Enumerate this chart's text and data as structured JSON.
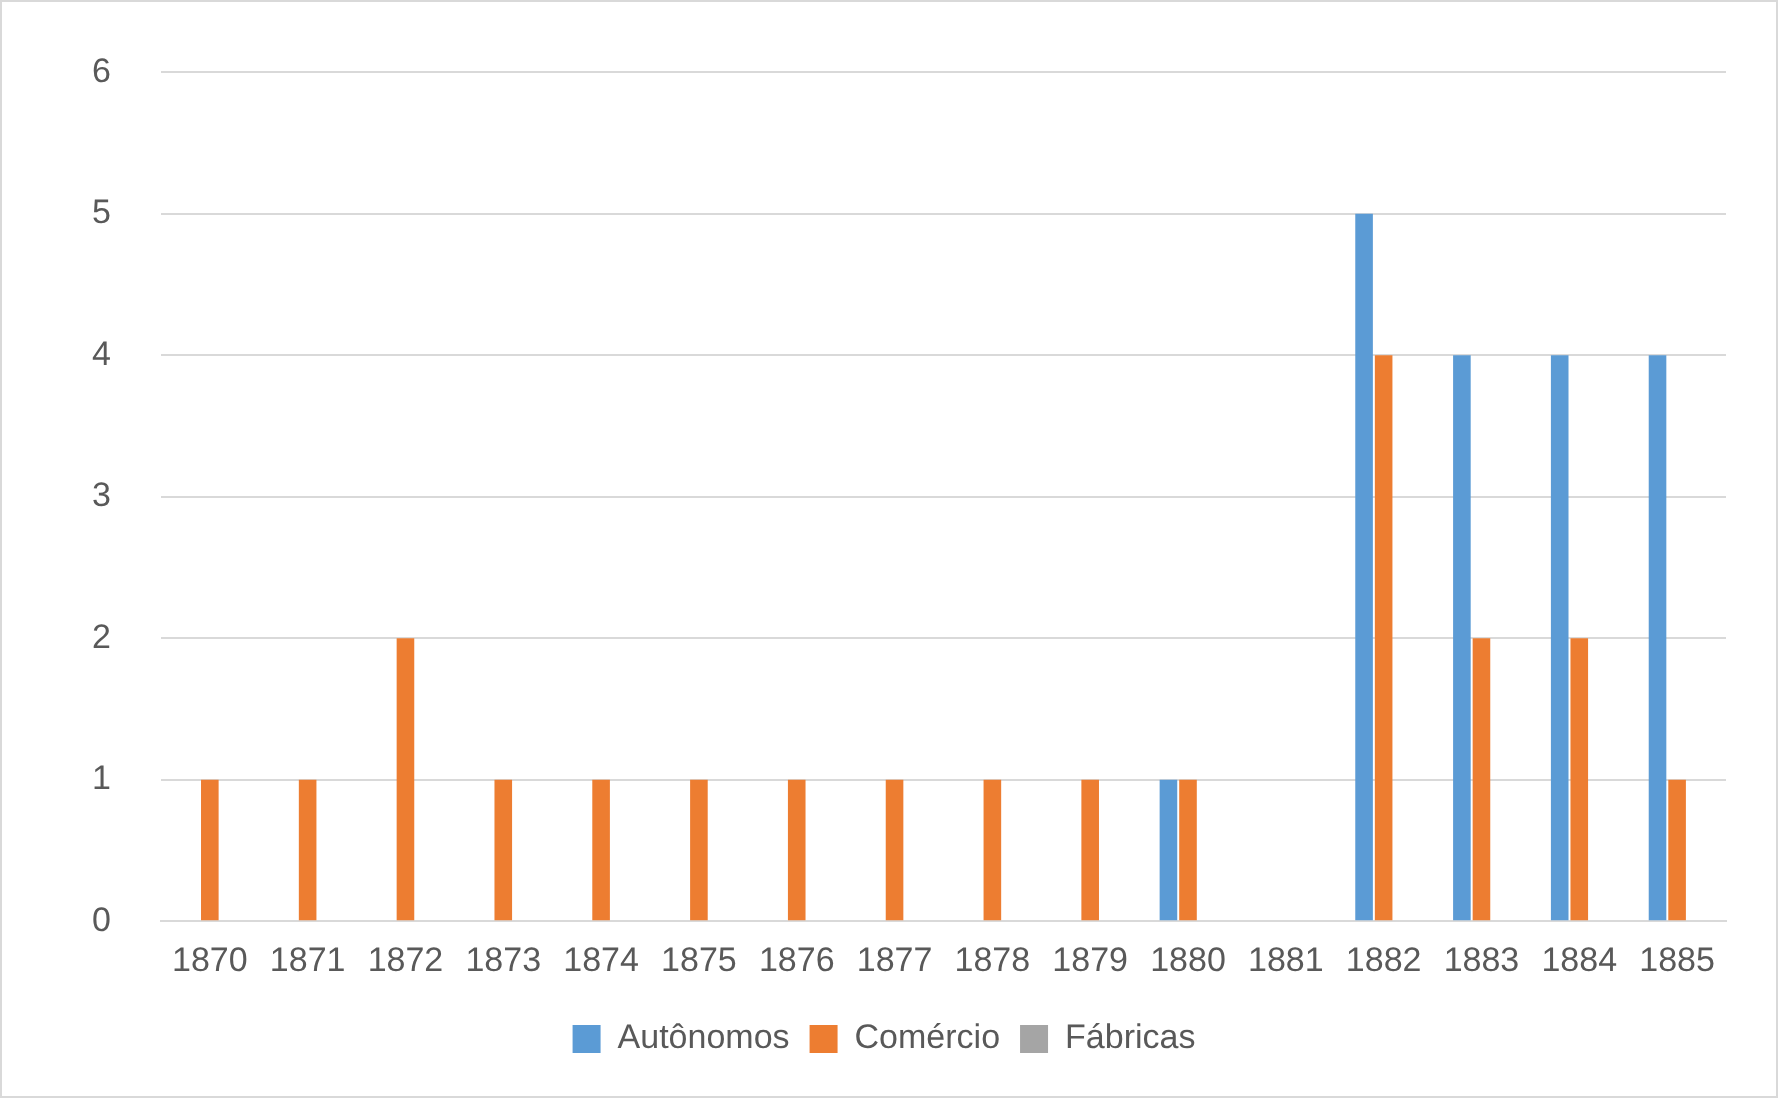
{
  "chart_data": {
    "type": "bar",
    "categories": [
      "1870",
      "1871",
      "1872",
      "1873",
      "1874",
      "1875",
      "1876",
      "1877",
      "1878",
      "1879",
      "1880",
      "1881",
      "1882",
      "1883",
      "1884",
      "1885"
    ],
    "series": [
      {
        "name": "Autônomos",
        "color": "#5b9bd5",
        "values": [
          0,
          0,
          0,
          0,
          0,
          0,
          0,
          0,
          0,
          0,
          1,
          0,
          5,
          4,
          4,
          4
        ]
      },
      {
        "name": "Comércio",
        "color": "#ed7d31",
        "values": [
          1,
          1,
          2,
          1,
          1,
          1,
          1,
          1,
          1,
          1,
          1,
          0,
          4,
          2,
          2,
          1
        ]
      },
      {
        "name": "Fábricas",
        "color": "#a5a5a5",
        "values": [
          0,
          0,
          0,
          0,
          0,
          0,
          0,
          0,
          0,
          0,
          0,
          0,
          0,
          0,
          0,
          0
        ]
      }
    ],
    "ylim": [
      0,
      6
    ],
    "yticks": [
      0,
      1,
      2,
      3,
      4,
      5,
      6
    ],
    "grid": "y",
    "legend": "bottom"
  }
}
